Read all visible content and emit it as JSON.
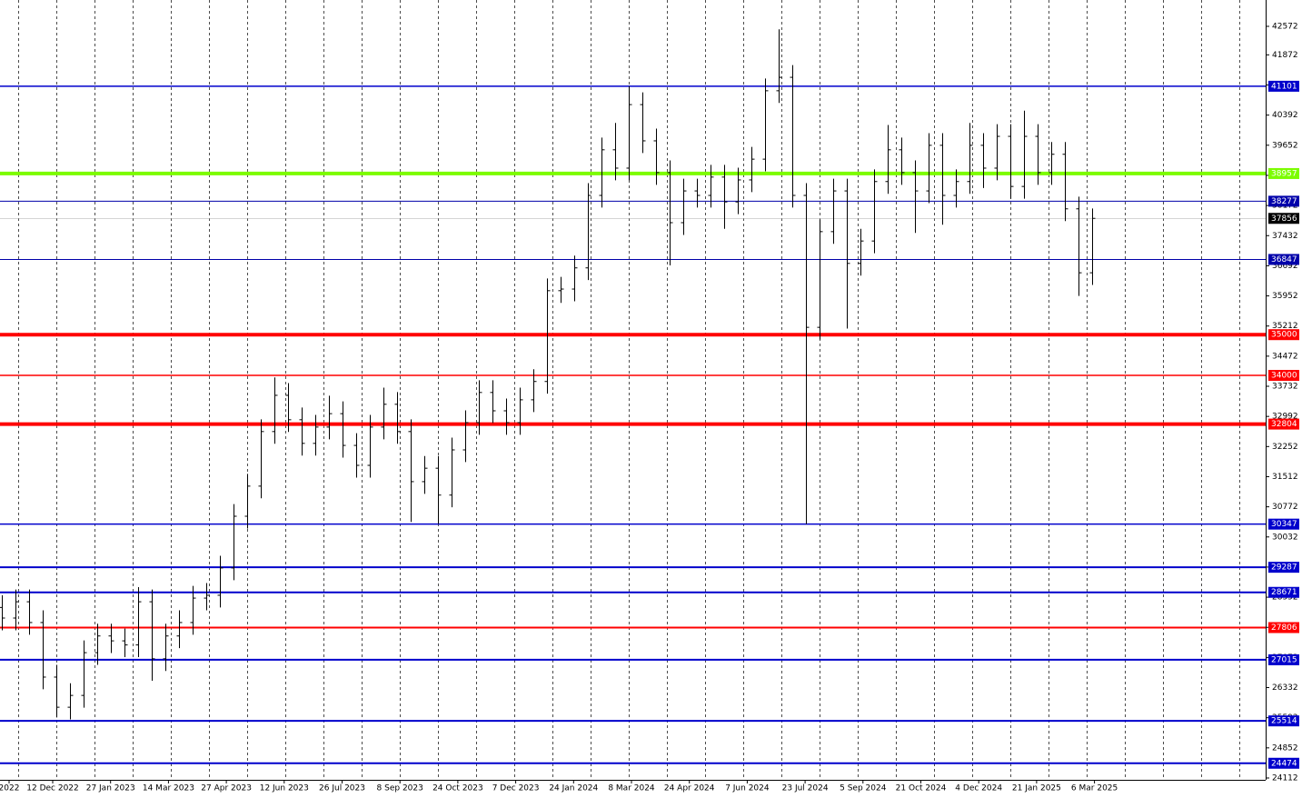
{
  "chart_data": {
    "type": "ohlc",
    "x_labels": [
      "2022",
      "12 Dec 2022",
      "27 Jan 2023",
      "14 Mar 2023",
      "27 Apr 2023",
      "12 Jun 2023",
      "26 Jul 2023",
      "8 Sep 2023",
      "24 Oct 2023",
      "7 Dec 2023",
      "24 Jan 2024",
      "8 Mar 2024",
      "24 Apr 2024",
      "7 Jun 2024",
      "23 Jul 2024",
      "5 Sep 2024",
      "21 Oct 2024",
      "4 Dec 2024",
      "21 Jan 2025",
      "6 Mar 2025"
    ],
    "open": [
      28300,
      28040,
      28440,
      27930,
      26590,
      25850,
      26140,
      27190,
      27600,
      27480,
      27380,
      28440,
      27040,
      27600,
      27930,
      28530,
      28600,
      29270,
      30540,
      31280,
      32620,
      33510,
      32910,
      32330,
      32730,
      33060,
      32280,
      31790,
      32730,
      33290,
      32620,
      31390,
      31720,
      31060,
      32170,
      32840,
      33580,
      33130,
      32840,
      33400,
      33850,
      36080,
      36120,
      36640,
      38420,
      39540,
      39090,
      40650,
      39760,
      38980,
      37750,
      38530,
      38420,
      38870,
      38260,
      38800,
      39310,
      40990,
      41320,
      38420,
      35180,
      37530,
      38530,
      36750,
      37300,
      38760,
      39540,
      38980,
      38530,
      39650,
      38420,
      38760,
      39650,
      39090,
      39870,
      38640,
      39870,
      38980,
      39430,
      38090,
      36520
    ],
    "high": [
      28600,
      28740,
      28740,
      28230,
      26890,
      26440,
      27490,
      27900,
      27900,
      27780,
      28800,
      28740,
      27900,
      28230,
      28830,
      28900,
      29570,
      30840,
      31580,
      32920,
      33950,
      33810,
      33210,
      33030,
      33500,
      33360,
      32580,
      33030,
      33700,
      33590,
      32920,
      32020,
      32020,
      32470,
      33140,
      33880,
      33880,
      33430,
      33700,
      34150,
      36380,
      36420,
      36940,
      38720,
      39840,
      40200,
      41100,
      40950,
      40060,
      39280,
      38830,
      38830,
      39170,
      39170,
      39100,
      39610,
      41290,
      42500,
      41620,
      38720,
      37830,
      38830,
      38830,
      37600,
      39060,
      40150,
      39840,
      39280,
      39950,
      39950,
      39060,
      40200,
      39950,
      40170,
      40170,
      40500,
      40170,
      39730,
      39730,
      38390,
      38100
    ],
    "low": [
      27740,
      27740,
      27630,
      26290,
      25600,
      25550,
      25840,
      26890,
      27180,
      27080,
      27080,
      26500,
      26740,
      27300,
      27630,
      28230,
      28300,
      28970,
      30240,
      30980,
      32320,
      32610,
      32030,
      32030,
      32430,
      31980,
      31490,
      31490,
      32430,
      32320,
      30400,
      31090,
      30350,
      30760,
      31870,
      32540,
      32830,
      32540,
      32540,
      33100,
      33550,
      35780,
      35820,
      36340,
      38120,
      38790,
      38790,
      39460,
      38680,
      36700,
      37450,
      38120,
      38120,
      37600,
      37960,
      38500,
      39010,
      40690,
      38120,
      30347,
      34880,
      37230,
      35150,
      36450,
      37000,
      38460,
      38680,
      37500,
      38230,
      37700,
      38120,
      38460,
      38600,
      38790,
      38340,
      38340,
      38680,
      38680,
      37790,
      35950,
      36220
    ],
    "close": [
      28040,
      28440,
      27930,
      26590,
      25850,
      26140,
      27190,
      27600,
      27480,
      27380,
      28440,
      27040,
      27600,
      27930,
      28530,
      28600,
      29270,
      30540,
      31280,
      32620,
      33510,
      32910,
      32330,
      32730,
      33060,
      32280,
      31790,
      32730,
      33290,
      32620,
      31390,
      31720,
      31060,
      32170,
      32840,
      33580,
      33130,
      32840,
      33400,
      33850,
      36080,
      36120,
      36640,
      38420,
      39540,
      39090,
      40650,
      39760,
      38980,
      37750,
      38530,
      38420,
      38870,
      38260,
      38800,
      39310,
      40990,
      41320,
      38420,
      35180,
      37530,
      38530,
      36750,
      37300,
      38760,
      39540,
      38980,
      38530,
      39650,
      38420,
      38760,
      39650,
      39090,
      39870,
      38640,
      39870,
      38980,
      39430,
      38090,
      36520,
      37856
    ],
    "ylim": [
      24067,
      43219
    ],
    "yticks": [
      24112,
      24852,
      25592,
      26332,
      27072,
      27812,
      28552,
      29292,
      30032,
      30772,
      31512,
      32252,
      32992,
      33732,
      34472,
      35212,
      35952,
      36692,
      37432,
      38172,
      38912,
      39652,
      40392,
      41132,
      41872,
      42572
    ],
    "levels": [
      {
        "value": 41101,
        "color": "#0000cc",
        "width": 1.5
      },
      {
        "value": 38957,
        "color": "#7cfc00",
        "width": 4
      },
      {
        "value": 38277,
        "color": "#0000aa",
        "width": 1
      },
      {
        "value": 37856,
        "color": "#000000",
        "width": 0.5
      },
      {
        "value": 36847,
        "color": "#0000aa",
        "width": 1
      },
      {
        "value": 35000,
        "color": "#ff0000",
        "width": 4
      },
      {
        "value": 34000,
        "color": "#ff0000",
        "width": 1.5
      },
      {
        "value": 32804,
        "color": "#ff0000",
        "width": 4
      },
      {
        "value": 30347,
        "color": "#0000cc",
        "width": 1.5
      },
      {
        "value": 29287,
        "color": "#0000cc",
        "width": 2
      },
      {
        "value": 28671,
        "color": "#0000cc",
        "width": 2
      },
      {
        "value": 27806,
        "color": "#ff0000",
        "width": 2
      },
      {
        "value": 27015,
        "color": "#0000cc",
        "width": 2
      },
      {
        "value": 25514,
        "color": "#0000cc",
        "width": 2
      },
      {
        "value": 24474,
        "color": "#0000cc",
        "width": 2
      }
    ],
    "bar_color": "#000000",
    "grid": true
  }
}
